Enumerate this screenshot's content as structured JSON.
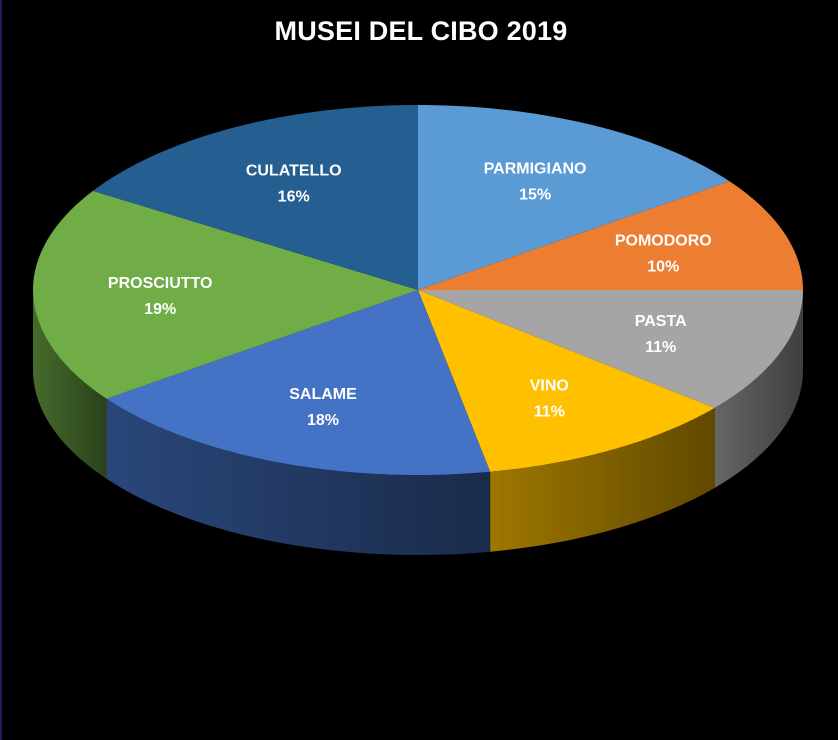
{
  "chart_data": {
    "type": "pie",
    "title": "MUSEI DEL CIBO 2019",
    "style": "3d",
    "slices": [
      {
        "label": "PARMIGIANO",
        "percent_label": "15%",
        "value": 15,
        "color": "#5b9bd5"
      },
      {
        "label": "POMODORO",
        "percent_label": "10%",
        "value": 10,
        "color": "#ed7d31"
      },
      {
        "label": "PASTA",
        "percent_label": "11%",
        "value": 11,
        "color": "#a5a5a5"
      },
      {
        "label": "VINO",
        "percent_label": "11%",
        "value": 11,
        "color": "#ffc000"
      },
      {
        "label": "SALAME",
        "percent_label": "18%",
        "value": 18,
        "color": "#4472c4"
      },
      {
        "label": "PROSCIUTTO",
        "percent_label": "19%",
        "value": 19,
        "color": "#70ad47"
      },
      {
        "label": "CULATELLO",
        "percent_label": "16%",
        "value": 16,
        "color": "#255e91"
      }
    ]
  }
}
